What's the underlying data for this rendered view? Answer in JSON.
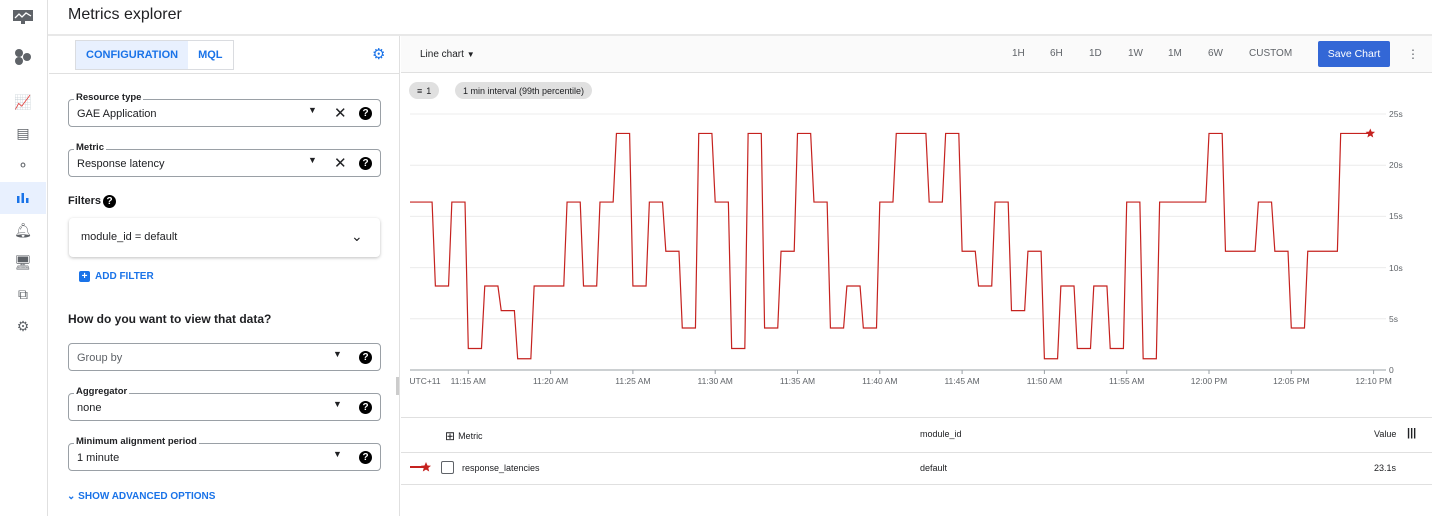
{
  "app": {
    "title": "Metrics explorer"
  },
  "rail": {
    "items": [
      "monitoring-logo-icon",
      "project-icon",
      "overview-icon",
      "dashboards-icon",
      "services-icon",
      "metrics-explorer-icon",
      "alerting-icon",
      "uptime-icon",
      "groups-icon",
      "settings-icon"
    ],
    "active": "metrics-explorer-icon"
  },
  "config": {
    "tabs": [
      {
        "label": "CONFIGURATION",
        "active": true
      },
      {
        "label": "MQL",
        "active": false
      }
    ],
    "resource_type": {
      "label": "Resource type",
      "value": "GAE Application"
    },
    "metric": {
      "label": "Metric",
      "value": "Response latency"
    },
    "filters": {
      "label": "Filters",
      "items": [
        "module_id = default"
      ],
      "add_label": "ADD FILTER"
    },
    "view_heading": "How do you want to view that data?",
    "group_by": {
      "placeholder": "Group by"
    },
    "aggregator": {
      "label": "Aggregator",
      "value": "none"
    },
    "alignment": {
      "label": "Minimum alignment period",
      "value": "1 minute"
    },
    "advanced_label": "SHOW ADVANCED OPTIONS"
  },
  "toolbar": {
    "chart_type": "Line chart",
    "ranges": [
      "1H",
      "6H",
      "1D",
      "1W",
      "1M",
      "6W",
      "CUSTOM"
    ],
    "active_range": "1H",
    "save_label": "Save Chart"
  },
  "chips": {
    "filter_count": "1",
    "interval": "1 min interval (99th percentile)"
  },
  "accent": "#1a73e8",
  "chart_data": {
    "type": "line",
    "timezone_label": "UTC+11",
    "x_ticks": [
      "11:15 AM",
      "11:20 AM",
      "11:25 AM",
      "11:30 AM",
      "11:35 AM",
      "11:40 AM",
      "11:45 AM",
      "11:50 AM",
      "11:55 AM",
      "12:00 PM",
      "12:05 PM",
      "12:10 PM"
    ],
    "y_ticks": [
      "0",
      "5s",
      "10s",
      "15s",
      "20s",
      "25s"
    ],
    "ylim": [
      0,
      25
    ],
    "grid": true,
    "series": [
      {
        "name": "response_latencies",
        "color": "#c5221f",
        "x": [
          "11:11",
          "11:12",
          "11:13",
          "11:14",
          "11:15",
          "11:16",
          "11:17",
          "11:18",
          "11:19",
          "11:20",
          "11:21",
          "11:22",
          "11:23",
          "11:24",
          "11:25",
          "11:26",
          "11:27",
          "11:28",
          "11:29",
          "11:30",
          "11:31",
          "11:32",
          "11:33",
          "11:34",
          "11:35",
          "11:36",
          "11:37",
          "11:38",
          "11:39",
          "11:40",
          "11:41",
          "11:42",
          "11:43",
          "11:44",
          "11:45",
          "11:46",
          "11:47",
          "11:48",
          "11:49",
          "11:50",
          "11:51",
          "11:52",
          "11:53",
          "11:54",
          "11:55",
          "11:56",
          "11:57",
          "11:58",
          "11:59",
          "12:00",
          "12:01",
          "12:02",
          "12:03",
          "12:04",
          "12:05",
          "12:06",
          "12:07",
          "12:08",
          "12:09"
        ],
        "y": [
          16.4,
          16.4,
          8.2,
          16.4,
          2.1,
          8.2,
          5.8,
          1.1,
          8.2,
          8.2,
          16.4,
          8.2,
          16.4,
          23.1,
          8.2,
          16.4,
          11.6,
          4.1,
          23.1,
          16.4,
          2.1,
          23.1,
          4.1,
          11.6,
          23.1,
          16.4,
          4.1,
          8.2,
          4.1,
          16.4,
          23.1,
          23.1,
          16.4,
          23.1,
          11.6,
          8.2,
          16.4,
          5.8,
          11.6,
          1.1,
          8.2,
          2.1,
          8.2,
          2.1,
          16.4,
          1.1,
          16.4,
          16.4,
          16.4,
          23.1,
          11.6,
          11.6,
          16.4,
          11.6,
          4.1,
          11.6,
          11.6,
          23.1,
          23.1
        ]
      }
    ]
  },
  "table": {
    "headers": [
      "Metric",
      "module_id",
      "Value"
    ],
    "rows": [
      {
        "metric": "response_latencies",
        "module_id": "default",
        "value": "23.1s"
      }
    ]
  }
}
